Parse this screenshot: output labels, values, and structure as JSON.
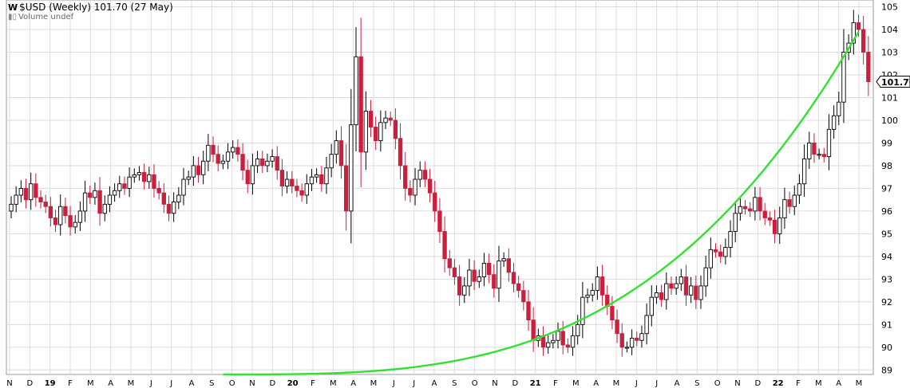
{
  "header": {
    "title": "$USD (Weekly) 101.70 (27 May)",
    "volume_label": "Volume undef",
    "ticker_icon": "chart-logo-icon",
    "volume_icon": "bar-chart-icon"
  },
  "colors": {
    "up": "#ffffff",
    "down": "#cc1f3d",
    "outline": "#000000",
    "trendline": "#33e033",
    "grid": "#dcdcdc",
    "last_price_box": "#ffffff"
  },
  "chart_data": {
    "type": "candlestick",
    "symbol": "$USD",
    "period": "Weekly",
    "last_price": 101.7,
    "last_price_label": "101.70",
    "ylim": [
      88.8,
      105.3
    ],
    "y_ticks": [
      89,
      90,
      91,
      92,
      93,
      94,
      95,
      96,
      97,
      98,
      99,
      100,
      101,
      102,
      103,
      104,
      105
    ],
    "x_tick_labels": [
      "N",
      "D",
      "19",
      "F",
      "M",
      "A",
      "M",
      "J",
      "J",
      "A",
      "S",
      "O",
      "N",
      "D",
      "20",
      "F",
      "M",
      "A",
      "M",
      "J",
      "J",
      "A",
      "S",
      "O",
      "N",
      "D",
      "21",
      "F",
      "M",
      "A",
      "M",
      "J",
      "J",
      "A",
      "S",
      "O",
      "N",
      "D",
      "22",
      "F",
      "M",
      "A",
      "M"
    ],
    "grid": true,
    "trendline": {
      "type": "parabolic-arc",
      "from": [
        43,
        88.8
      ],
      "to": [
        172,
        103.9
      ]
    },
    "closes": [
      96.3,
      96.7,
      97.0,
      96.5,
      97.2,
      96.6,
      96.4,
      96.2,
      95.7,
      95.4,
      96.2,
      95.8,
      95.3,
      95.5,
      96.0,
      96.8,
      96.6,
      96.9,
      95.9,
      96.3,
      96.7,
      96.9,
      97.2,
      97.0,
      97.5,
      97.6,
      97.7,
      97.3,
      97.6,
      97.0,
      96.8,
      96.3,
      95.9,
      96.4,
      96.7,
      97.4,
      97.5,
      98.0,
      97.6,
      98.2,
      98.9,
      98.5,
      98.1,
      98.2,
      98.6,
      98.8,
      98.5,
      97.8,
      97.2,
      98.0,
      98.3,
      98.0,
      98.2,
      98.4,
      97.8,
      97.1,
      97.4,
      97.1,
      96.9,
      96.7,
      97.2,
      97.5,
      97.6,
      97.2,
      97.9,
      98.5,
      99.1,
      98.0,
      96.0,
      99.8,
      102.8,
      98.6,
      100.4,
      99.7,
      99.1,
      99.9,
      100.1,
      100.0,
      99.2,
      98.0,
      97.0,
      96.7,
      97.4,
      97.8,
      97.4,
      96.8,
      96.0,
      95.1,
      93.9,
      93.5,
      93.1,
      92.3,
      92.7,
      93.4,
      92.9,
      93.1,
      93.7,
      93.2,
      92.6,
      93.8,
      93.9,
      93.3,
      92.8,
      92.5,
      92.0,
      91.2,
      90.3,
      90.5,
      90.0,
      90.2,
      90.3,
      90.7,
      90.1,
      90.0,
      90.5,
      91.0,
      92.2,
      92.3,
      92.5,
      93.1,
      92.3,
      91.8,
      91.2,
      90.6,
      90.0,
      90.0,
      90.4,
      90.3,
      90.6,
      91.4,
      92.2,
      92.4,
      92.1,
      92.8,
      92.6,
      92.8,
      93.1,
      92.3,
      92.7,
      92.1,
      92.7,
      93.5,
      94.3,
      94.2,
      94.0,
      94.4,
      95.1,
      95.9,
      96.2,
      96.1,
      96.0,
      96.6,
      96.0,
      95.7,
      95.6,
      95.0,
      95.7,
      96.5,
      96.2,
      96.7,
      97.2,
      98.3,
      99.0,
      98.5,
      98.5,
      98.4,
      99.6,
      100.2,
      100.8,
      103.0,
      103.4,
      104.3,
      104.0,
      103.0,
      101.7
    ]
  }
}
